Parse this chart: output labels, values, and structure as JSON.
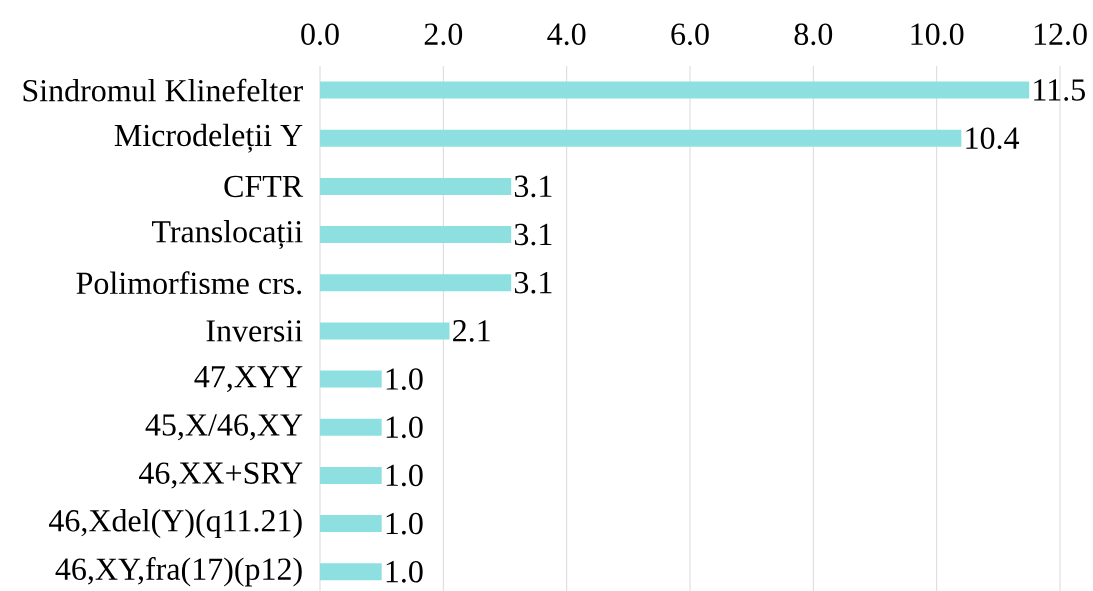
{
  "chart_data": {
    "type": "bar",
    "orientation": "horizontal",
    "categories": [
      "Sindromul Klinefelter",
      "Microdeleții Y",
      "CFTR",
      "Translocații",
      "Polimorfisme crs.",
      "Inversii",
      "47,XYY",
      "45,X/46,XY",
      "46,XX+SRY",
      "46,Xdel(Y)(q11.21)",
      "46,XY,fra(17)(p12)"
    ],
    "values": [
      11.5,
      10.4,
      3.1,
      3.1,
      3.1,
      2.1,
      1.0,
      1.0,
      1.0,
      1.0,
      1.0
    ],
    "value_labels": [
      "11.5",
      "10.4",
      "3.1",
      "3.1",
      "3.1",
      "2.1",
      "1.0",
      "1.0",
      "1.0",
      "1.0",
      "1.0"
    ],
    "color": "#8ddfe0",
    "xlim": [
      0,
      12
    ],
    "xticks": [
      {
        "value": 0,
        "label": "0.0"
      },
      {
        "value": 2,
        "label": "2.0"
      },
      {
        "value": 4,
        "label": "4.0"
      },
      {
        "value": 6,
        "label": "6.0"
      },
      {
        "value": 8,
        "label": "8.0"
      },
      {
        "value": 10,
        "label": "10.0"
      },
      {
        "value": 12,
        "label": "12.0"
      }
    ],
    "grid": "x"
  }
}
